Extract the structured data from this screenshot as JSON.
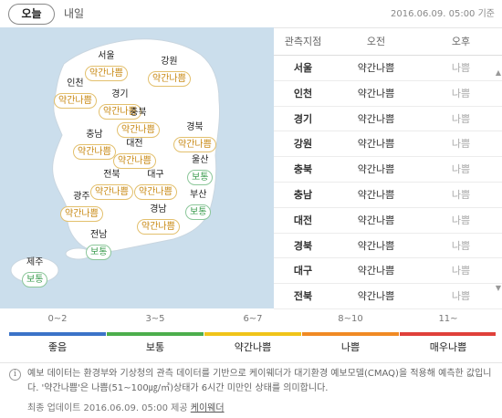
{
  "tabs": {
    "today": "오늘",
    "tomorrow": "내일"
  },
  "timestamp": "2016.06.09. 05:00 기준",
  "map": {
    "regions": [
      {
        "name": "서울",
        "status": "약간나쁨",
        "level": "moderate"
      },
      {
        "name": "강원",
        "status": "약간나쁨",
        "level": "moderate"
      },
      {
        "name": "인천",
        "status": "약간나쁨",
        "level": "moderate"
      },
      {
        "name": "경기",
        "status": "약간나쁨",
        "level": "moderate"
      },
      {
        "name": "충북",
        "status": "약간나쁨",
        "level": "moderate"
      },
      {
        "name": "경북",
        "status": "약간나쁨",
        "level": "moderate"
      },
      {
        "name": "충남",
        "status": "약간나쁨",
        "level": "moderate"
      },
      {
        "name": "대전",
        "status": "약간나쁨",
        "level": "moderate"
      },
      {
        "name": "울산",
        "status": "보통",
        "level": "good"
      },
      {
        "name": "전북",
        "status": "약간나쁨",
        "level": "moderate"
      },
      {
        "name": "대구",
        "status": "약간나쁨",
        "level": "moderate"
      },
      {
        "name": "부산",
        "status": "보통",
        "level": "good"
      },
      {
        "name": "광주",
        "status": "약간나쁨",
        "level": "moderate"
      },
      {
        "name": "경남",
        "status": "약간나쁨",
        "level": "moderate"
      },
      {
        "name": "전남",
        "status": "보통",
        "level": "good"
      },
      {
        "name": "제주",
        "status": "보통",
        "level": "good"
      }
    ]
  },
  "table": {
    "headers": [
      "관측지점",
      "오전",
      "오후"
    ],
    "rows": [
      [
        "서울",
        "약간나쁨",
        "나쁨"
      ],
      [
        "인천",
        "약간나쁨",
        "나쁨"
      ],
      [
        "경기",
        "약간나쁨",
        "나쁨"
      ],
      [
        "강원",
        "약간나쁨",
        "나쁨"
      ],
      [
        "충북",
        "약간나쁨",
        "나쁨"
      ],
      [
        "충남",
        "약간나쁨",
        "나쁨"
      ],
      [
        "대전",
        "약간나쁨",
        "나쁨"
      ],
      [
        "경북",
        "약간나쁨",
        "나쁨"
      ],
      [
        "대구",
        "약간나쁨",
        "나쁨"
      ],
      [
        "전북",
        "약간나쁨",
        "나쁨"
      ]
    ]
  },
  "legend": [
    {
      "range": "0~2",
      "label": "좋음",
      "color": "#3b73c8"
    },
    {
      "range": "3~5",
      "label": "보통",
      "color": "#4cae4c"
    },
    {
      "range": "6~7",
      "label": "약간나쁨",
      "color": "#f0c419"
    },
    {
      "range": "8~10",
      "label": "나쁨",
      "color": "#f08a24"
    },
    {
      "range": "11~",
      "label": "매우나쁨",
      "color": "#e0403a"
    }
  ],
  "notice": {
    "text": "예보 데이터는 환경부와 기상청의 관측 데이터를 기반으로 케이웨더가 대기환경 예보모델(CMAQ)을 적용해 예측한 값입니다. '약간나쁨'은 나쁨(51~100㎍/㎥)상태가 6시간 미만인 상태를 의미합니다.",
    "update_prefix": "최종 업데이트 2016.06.09. 05:00 제공",
    "provider": "케이웨더"
  },
  "colors": {
    "moderate": "#c98b17",
    "good": "#3a9b4d",
    "map_bg": "#cbdeec",
    "land": "#ffffff"
  }
}
